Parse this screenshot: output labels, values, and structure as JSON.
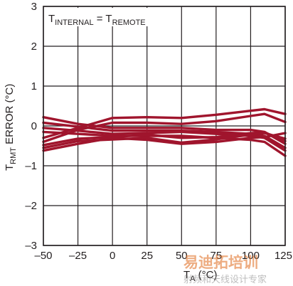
{
  "chart_data": {
    "type": "line",
    "annotation": {
      "lhs_main": "T",
      "lhs_sub": "INTERNAL",
      "eq": " = ",
      "rhs_main": "T",
      "rhs_sub": "REMOTE"
    },
    "xlabel": {
      "main": "T",
      "sub": "A",
      "rest": " (°C)"
    },
    "ylabel": {
      "main": "T",
      "sub": "RMT",
      "rest": " ERROR (°C)"
    },
    "xlim": [
      -50,
      125
    ],
    "ylim": [
      -3,
      3
    ],
    "x_ticks": [
      -50,
      -25,
      0,
      25,
      50,
      75,
      100,
      125
    ],
    "y_ticks": [
      3,
      2,
      1,
      0,
      -1,
      -2,
      -3
    ],
    "x_tick_labels": [
      "–50",
      "–25",
      "0",
      "25",
      "50",
      "75",
      "100",
      "125"
    ],
    "y_tick_labels": [
      "3",
      "2",
      "1",
      "0",
      "–1",
      "–2",
      "–3"
    ],
    "grid": true,
    "line_color": "#a0152d",
    "x": [
      -50,
      -25,
      0,
      25,
      50,
      75,
      100,
      110,
      125
    ],
    "series": [
      {
        "values": [
          0.22,
          0.05,
          -0.05,
          -0.05,
          -0.05,
          -0.1,
          -0.1,
          -0.15,
          -0.45
        ]
      },
      {
        "values": [
          0.08,
          -0.02,
          -0.12,
          -0.12,
          -0.12,
          -0.15,
          -0.2,
          -0.25,
          -0.55
        ]
      },
      {
        "values": [
          -0.05,
          -0.12,
          -0.2,
          -0.18,
          -0.15,
          -0.2,
          -0.25,
          -0.3,
          -0.62
        ]
      },
      {
        "values": [
          -0.15,
          -0.2,
          -0.25,
          -0.25,
          -0.25,
          -0.3,
          -0.35,
          -0.4,
          -0.75
        ]
      },
      {
        "values": [
          -0.3,
          -0.05,
          0.2,
          0.22,
          0.2,
          0.28,
          0.38,
          0.42,
          0.3
        ]
      },
      {
        "values": [
          -0.4,
          -0.1,
          0.08,
          0.08,
          0.05,
          0.12,
          0.25,
          0.3,
          0.1
        ]
      },
      {
        "values": [
          -0.48,
          -0.32,
          -0.28,
          -0.22,
          -0.3,
          -0.28,
          -0.18,
          -0.16,
          -0.38
        ]
      },
      {
        "values": [
          -0.55,
          -0.38,
          -0.34,
          -0.3,
          -0.42,
          -0.34,
          -0.22,
          -0.18,
          -0.32
        ]
      },
      {
        "values": [
          -0.62,
          -0.45,
          -0.3,
          -0.35,
          -0.45,
          -0.4,
          -0.3,
          -0.28,
          -0.18
        ]
      }
    ]
  },
  "watermark": {
    "main": "易迪拓培训",
    "sub": "射频和天线设计专家"
  }
}
